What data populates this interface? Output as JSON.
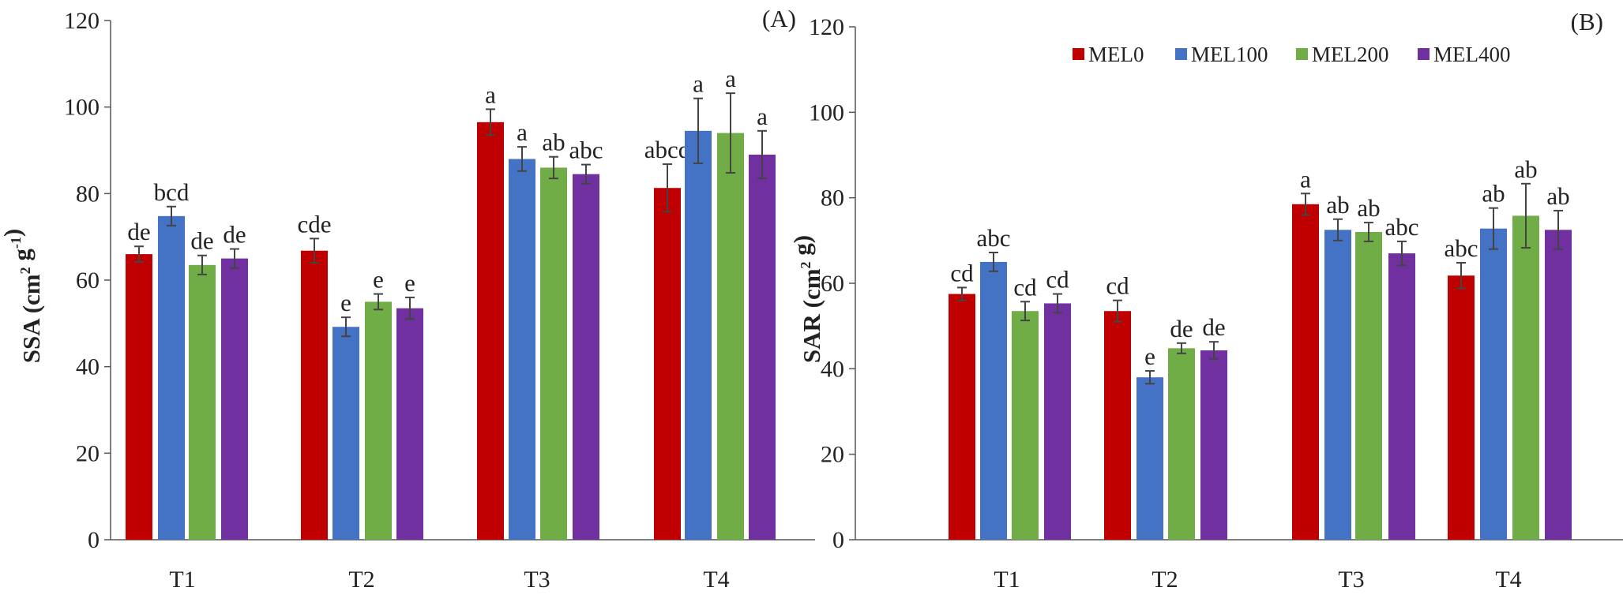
{
  "chart_data": [
    {
      "type": "bar",
      "panel": "(A)",
      "ylabel": "SSA (cm² g⁻¹)",
      "ylabel_main": "SSA (cm",
      "ylabel_sup": "2",
      "ylabel_mid": " g",
      "ylabel_sup2": "-1",
      "ylabel_end": ")",
      "ylim": [
        0,
        120
      ],
      "yticks": [
        "0",
        "20",
        "40",
        "60",
        "80",
        "100",
        "120"
      ],
      "categories": [
        "T1",
        "T2",
        "T3",
        "T4"
      ],
      "series": [
        {
          "name": "MEL0",
          "color": "#c00000",
          "values": [
            66,
            66.8,
            96.5,
            81.3
          ],
          "errors": [
            1.8,
            2.8,
            3.0,
            5.5
          ],
          "letters": [
            "de",
            "cde",
            "a",
            "abcd"
          ]
        },
        {
          "name": "MEL100",
          "color": "#4472c4",
          "values": [
            74.8,
            49.2,
            88.0,
            94.5
          ],
          "errors": [
            2.2,
            2.2,
            2.8,
            7.5
          ],
          "letters": [
            "bcd",
            "e",
            "a",
            "a"
          ]
        },
        {
          "name": "MEL200",
          "color": "#70ad47",
          "values": [
            63.5,
            55.0,
            86.0,
            94.0
          ],
          "errors": [
            2.2,
            1.8,
            2.5,
            9.2
          ],
          "letters": [
            "de",
            "e",
            "ab",
            "a"
          ]
        },
        {
          "name": "MEL400",
          "color": "#7030a0",
          "values": [
            65.0,
            53.5,
            84.5,
            89.0
          ],
          "errors": [
            2.2,
            2.5,
            2.2,
            5.5
          ],
          "letters": [
            "de",
            "e",
            "abc",
            "a"
          ]
        }
      ]
    },
    {
      "type": "bar",
      "panel": "(B)",
      "ylabel": "SAR (cm² g)",
      "ylabel_main": "SAR (cm",
      "ylabel_sup": "2",
      "ylabel_mid": " g)",
      "ylabel_sup2": "",
      "ylabel_end": "",
      "ylim": [
        0,
        120
      ],
      "yticks": [
        "0",
        "20",
        "40",
        "60",
        "80",
        "100",
        "120"
      ],
      "categories": [
        "T1",
        "T2",
        "T3",
        "T4"
      ],
      "legend": [
        "MEL0",
        "MEL100",
        "MEL200",
        "MEL400"
      ],
      "series": [
        {
          "name": "MEL0",
          "color": "#c00000",
          "values": [
            57.5,
            53.5,
            78.5,
            61.8
          ],
          "errors": [
            1.5,
            2.5,
            2.5,
            3.0
          ],
          "letters": [
            "cd",
            "cd",
            "a",
            "abc"
          ]
        },
        {
          "name": "MEL100",
          "color": "#4472c4",
          "values": [
            65.0,
            38.0,
            72.5,
            72.8
          ],
          "errors": [
            2.2,
            1.5,
            2.5,
            4.8
          ],
          "letters": [
            "abc",
            "e",
            "ab",
            "ab"
          ]
        },
        {
          "name": "MEL200",
          "color": "#70ad47",
          "values": [
            53.5,
            44.8,
            72.0,
            75.8
          ],
          "errors": [
            2.2,
            1.2,
            2.2,
            7.5
          ],
          "letters": [
            "cd",
            "de",
            "ab",
            "ab"
          ]
        },
        {
          "name": "MEL400",
          "color": "#7030a0",
          "values": [
            55.3,
            44.3,
            67.0,
            72.5
          ],
          "errors": [
            2.2,
            2.0,
            2.8,
            4.5
          ],
          "letters": [
            "cd",
            "de",
            "abc",
            "ab"
          ]
        }
      ]
    }
  ]
}
